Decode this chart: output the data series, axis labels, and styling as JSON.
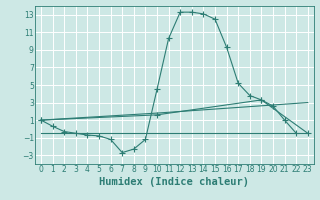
{
  "xlabel": "Humidex (Indice chaleur)",
  "bg_color": "#cde8e5",
  "grid_color": "#ffffff",
  "line_color": "#2d7d74",
  "xlim": [
    -0.5,
    23.5
  ],
  "ylim": [
    -4,
    14
  ],
  "xticks": [
    0,
    1,
    2,
    3,
    4,
    5,
    6,
    7,
    8,
    9,
    10,
    11,
    12,
    13,
    14,
    15,
    16,
    17,
    18,
    19,
    20,
    21,
    22,
    23
  ],
  "yticks": [
    -3,
    -1,
    1,
    3,
    5,
    7,
    9,
    11,
    13
  ],
  "line1_x": [
    0,
    1,
    2,
    3,
    4,
    5,
    6,
    7,
    8,
    9,
    10,
    11,
    12,
    13,
    14,
    15,
    16,
    17,
    18,
    19,
    20,
    21,
    22
  ],
  "line1_y": [
    1.0,
    0.3,
    -0.3,
    -0.5,
    -0.7,
    -0.8,
    -1.2,
    -2.7,
    -2.3,
    -1.2,
    4.5,
    10.3,
    13.3,
    13.3,
    13.1,
    12.5,
    9.3,
    5.2,
    3.8,
    3.3,
    2.6,
    1.0,
    -0.5
  ],
  "line2_x": [
    0,
    10,
    23
  ],
  "line2_y": [
    -0.5,
    -0.5,
    -0.5
  ],
  "line3_x": [
    0,
    10,
    19,
    23
  ],
  "line3_y": [
    1.0,
    1.6,
    3.3,
    -0.5
  ],
  "line4_x": [
    0,
    10,
    23
  ],
  "line4_y": [
    1.0,
    1.8,
    3.0
  ],
  "xlabel_fontsize": 7.5
}
